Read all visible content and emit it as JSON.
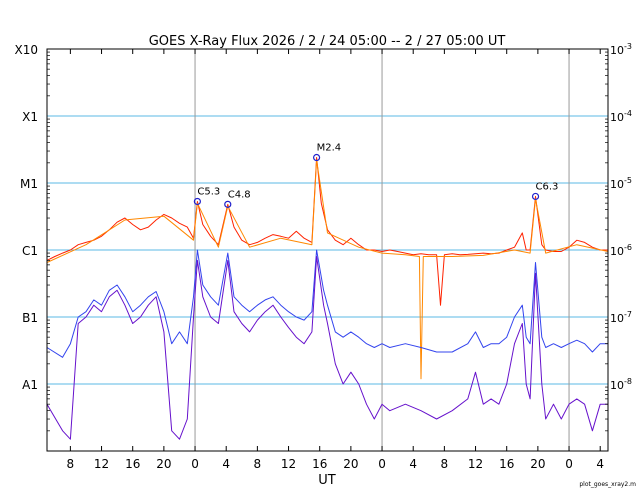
{
  "chart_data": {
    "type": "line",
    "title": "GOES X-Ray Flux   2026 /  2 / 24   05:00 --  2 / 27   05:00   UT",
    "xlabel": "UT",
    "footer_label": "plot_goes_xray2.m",
    "y_scale": "log",
    "ylim": [
      1e-09,
      0.001
    ],
    "xlim_hours": [
      0,
      72
    ],
    "grid": true,
    "left_ticks": [
      {
        "label": "A1",
        "value": 1e-08
      },
      {
        "label": "B1",
        "value": 1e-07
      },
      {
        "label": "C1",
        "value": 1e-06
      },
      {
        "label": "M1",
        "value": 1e-05
      },
      {
        "label": "X1",
        "value": 0.0001
      },
      {
        "label": "X10",
        "value": 0.001
      }
    ],
    "right_ticks": [
      {
        "base": "10",
        "exp": "-8",
        "value": 1e-08
      },
      {
        "base": "10",
        "exp": "-7",
        "value": 1e-07
      },
      {
        "base": "10",
        "exp": "-6",
        "value": 1e-06
      },
      {
        "base": "10",
        "exp": "-5",
        "value": 1e-05
      },
      {
        "base": "10",
        "exp": "-4",
        "value": 0.0001
      },
      {
        "base": "10",
        "exp": "-3",
        "value": 0.001
      }
    ],
    "x_ticks": [
      {
        "label": "8",
        "hour": 3
      },
      {
        "label": "12",
        "hour": 7
      },
      {
        "label": "16",
        "hour": 11
      },
      {
        "label": "20",
        "hour": 15
      },
      {
        "label": "0",
        "hour": 19
      },
      {
        "label": "4",
        "hour": 23
      },
      {
        "label": "8",
        "hour": 27
      },
      {
        "label": "12",
        "hour": 31
      },
      {
        "label": "16",
        "hour": 35
      },
      {
        "label": "20",
        "hour": 39
      },
      {
        "label": "0",
        "hour": 43
      },
      {
        "label": "4",
        "hour": 47
      },
      {
        "label": "8",
        "hour": 51
      },
      {
        "label": "12",
        "hour": 55
      },
      {
        "label": "16",
        "hour": 59
      },
      {
        "label": "20",
        "hour": 63
      },
      {
        "label": "0",
        "hour": 67
      },
      {
        "label": "4",
        "hour": 71
      }
    ],
    "day_boundaries_hours": [
      19,
      43,
      67
    ],
    "flares": [
      {
        "label": "C5.3",
        "hour": 19.3,
        "flux": 5.3e-06
      },
      {
        "label": "C4.8",
        "hour": 23.2,
        "flux": 4.8e-06
      },
      {
        "label": "M2.4",
        "hour": 34.6,
        "flux": 2.4e-05
      },
      {
        "label": "C6.3",
        "hour": 62.7,
        "flux": 6.3e-06
      }
    ],
    "series": [
      {
        "name": "",
        "color": "#ff2200",
        "points": [
          [
            0,
            7e-07
          ],
          [
            1,
            8e-07
          ],
          [
            2,
            9e-07
          ],
          [
            3,
            1e-06
          ],
          [
            4,
            1.2e-06
          ],
          [
            5,
            1.3e-06
          ],
          [
            6,
            1.4e-06
          ],
          [
            7,
            1.6e-06
          ],
          [
            8,
            2e-06
          ],
          [
            9,
            2.6e-06
          ],
          [
            10,
            3e-06
          ],
          [
            11,
            2.4e-06
          ],
          [
            12,
            2e-06
          ],
          [
            13,
            2.2e-06
          ],
          [
            14,
            2.8e-06
          ],
          [
            15,
            3.4e-06
          ],
          [
            16,
            3e-06
          ],
          [
            17,
            2.5e-06
          ],
          [
            18,
            2.2e-06
          ],
          [
            18.8,
            1.5e-06
          ],
          [
            19.3,
            5.3e-06
          ],
          [
            20,
            2.4e-06
          ],
          [
            21,
            1.6e-06
          ],
          [
            22,
            1.2e-06
          ],
          [
            23.2,
            4.8e-06
          ],
          [
            24,
            2.2e-06
          ],
          [
            25,
            1.4e-06
          ],
          [
            26,
            1.2e-06
          ],
          [
            27,
            1.3e-06
          ],
          [
            28,
            1.5e-06
          ],
          [
            29,
            1.7e-06
          ],
          [
            30,
            1.6e-06
          ],
          [
            31,
            1.5e-06
          ],
          [
            32,
            1.9e-06
          ],
          [
            33,
            1.5e-06
          ],
          [
            34,
            1.3e-06
          ],
          [
            34.6,
            2.4e-05
          ],
          [
            35.2,
            5e-06
          ],
          [
            36,
            2e-06
          ],
          [
            37,
            1.4e-06
          ],
          [
            38,
            1.2e-06
          ],
          [
            39,
            1.5e-06
          ],
          [
            40,
            1.2e-06
          ],
          [
            41,
            1e-06
          ],
          [
            42,
            1e-06
          ],
          [
            43,
            9.5e-07
          ],
          [
            44,
            1e-06
          ],
          [
            45,
            9.5e-07
          ],
          [
            46,
            9e-07
          ],
          [
            47,
            8.5e-07
          ],
          [
            48,
            8.8e-07
          ],
          [
            49,
            8.5e-07
          ],
          [
            50,
            8.5e-07
          ],
          [
            50.5,
            1.5e-07
          ],
          [
            51,
            8.5e-07
          ],
          [
            52,
            8.8e-07
          ],
          [
            53,
            8.5e-07
          ],
          [
            54,
            8.6e-07
          ],
          [
            55,
            8.8e-07
          ],
          [
            56,
            9e-07
          ],
          [
            57,
            8.8e-07
          ],
          [
            58,
            9e-07
          ],
          [
            59,
            1e-06
          ],
          [
            60,
            1.1e-06
          ],
          [
            61,
            1.8e-06
          ],
          [
            61.5,
            1e-06
          ],
          [
            62,
            1e-06
          ],
          [
            62.7,
            6.3e-06
          ],
          [
            63.5,
            1.2e-06
          ],
          [
            64,
            1e-06
          ],
          [
            65,
            9.5e-07
          ],
          [
            66,
            9.5e-07
          ],
          [
            67,
            1.1e-06
          ],
          [
            68,
            1.4e-06
          ],
          [
            69,
            1.3e-06
          ],
          [
            70,
            1.1e-06
          ],
          [
            71,
            1e-06
          ],
          [
            72,
            1e-06
          ]
        ]
      },
      {
        "name": "",
        "color": "#ff8800",
        "points": [
          [
            0,
            6.5e-07
          ],
          [
            5,
            1.2e-06
          ],
          [
            10,
            2.8e-06
          ],
          [
            15,
            3.2e-06
          ],
          [
            18.8,
            1.4e-06
          ],
          [
            19.3,
            5e-06
          ],
          [
            22,
            1.1e-06
          ],
          [
            23.2,
            4.5e-06
          ],
          [
            26,
            1.1e-06
          ],
          [
            30,
            1.5e-06
          ],
          [
            34,
            1.2e-06
          ],
          [
            34.6,
            2.2e-05
          ],
          [
            36,
            1.8e-06
          ],
          [
            40,
            1.1e-06
          ],
          [
            43,
            9e-07
          ],
          [
            46,
            8.5e-07
          ],
          [
            47.8,
            8e-07
          ],
          [
            48,
            1.2e-08
          ],
          [
            48.3,
            8e-07
          ],
          [
            52,
            8e-07
          ],
          [
            56,
            8.3e-07
          ],
          [
            60,
            1e-06
          ],
          [
            62,
            9e-07
          ],
          [
            62.7,
            5.8e-06
          ],
          [
            64,
            9e-07
          ],
          [
            68,
            1.2e-06
          ],
          [
            72,
            9.5e-07
          ]
        ]
      },
      {
        "name": "",
        "color": "#3344ee",
        "points": [
          [
            0,
            3.5e-08
          ],
          [
            2,
            2.5e-08
          ],
          [
            3,
            4e-08
          ],
          [
            4,
            1e-07
          ],
          [
            5,
            1.2e-07
          ],
          [
            6,
            1.8e-07
          ],
          [
            7,
            1.5e-07
          ],
          [
            8,
            2.5e-07
          ],
          [
            9,
            3e-07
          ],
          [
            10,
            2e-07
          ],
          [
            11,
            1.2e-07
          ],
          [
            12,
            1.5e-07
          ],
          [
            13,
            2e-07
          ],
          [
            14,
            2.4e-07
          ],
          [
            15,
            1.2e-07
          ],
          [
            16,
            4e-08
          ],
          [
            17,
            6e-08
          ],
          [
            18,
            4e-08
          ],
          [
            18.8,
            2e-07
          ],
          [
            19.3,
            1e-06
          ],
          [
            20,
            3e-07
          ],
          [
            21,
            2e-07
          ],
          [
            22,
            1.5e-07
          ],
          [
            23.2,
            9e-07
          ],
          [
            24,
            2e-07
          ],
          [
            25,
            1.5e-07
          ],
          [
            26,
            1.2e-07
          ],
          [
            27,
            1.5e-07
          ],
          [
            28,
            1.8e-07
          ],
          [
            29,
            2e-07
          ],
          [
            30,
            1.5e-07
          ],
          [
            31,
            1.2e-07
          ],
          [
            32,
            1e-07
          ],
          [
            33,
            9e-08
          ],
          [
            34,
            1.2e-07
          ],
          [
            34.6,
            1e-06
          ],
          [
            35.5,
            2.5e-07
          ],
          [
            36,
            1.5e-07
          ],
          [
            37,
            6e-08
          ],
          [
            38,
            5e-08
          ],
          [
            39,
            6e-08
          ],
          [
            40,
            5e-08
          ],
          [
            41,
            4e-08
          ],
          [
            42,
            3.5e-08
          ],
          [
            43,
            4e-08
          ],
          [
            44,
            3.5e-08
          ],
          [
            46,
            4e-08
          ],
          [
            48,
            3.5e-08
          ],
          [
            50,
            3e-08
          ],
          [
            52,
            3e-08
          ],
          [
            54,
            4e-08
          ],
          [
            55,
            6e-08
          ],
          [
            56,
            3.5e-08
          ],
          [
            57,
            4e-08
          ],
          [
            58,
            4e-08
          ],
          [
            59,
            5e-08
          ],
          [
            60,
            1e-07
          ],
          [
            61,
            1.5e-07
          ],
          [
            61.5,
            5e-08
          ],
          [
            62,
            4e-08
          ],
          [
            62.7,
            6.5e-07
          ],
          [
            63.5,
            5e-08
          ],
          [
            64,
            3.5e-08
          ],
          [
            65,
            4e-08
          ],
          [
            66,
            3.5e-08
          ],
          [
            67,
            4e-08
          ],
          [
            68,
            4.5e-08
          ],
          [
            69,
            4e-08
          ],
          [
            70,
            3e-08
          ],
          [
            71,
            4e-08
          ],
          [
            72,
            4e-08
          ]
        ]
      },
      {
        "name": "",
        "color": "#6611cc",
        "points": [
          [
            0,
            5e-09
          ],
          [
            2,
            2e-09
          ],
          [
            3,
            1.5e-09
          ],
          [
            4,
            8e-08
          ],
          [
            5,
            1e-07
          ],
          [
            6,
            1.5e-07
          ],
          [
            7,
            1.2e-07
          ],
          [
            8,
            2e-07
          ],
          [
            9,
            2.5e-07
          ],
          [
            10,
            1.5e-07
          ],
          [
            11,
            8e-08
          ],
          [
            12,
            1e-07
          ],
          [
            13,
            1.5e-07
          ],
          [
            14,
            2e-07
          ],
          [
            15,
            6e-08
          ],
          [
            16,
            2e-09
          ],
          [
            17,
            1.5e-09
          ],
          [
            18,
            3e-09
          ],
          [
            18.8,
            1e-07
          ],
          [
            19.3,
            7e-07
          ],
          [
            20,
            2e-07
          ],
          [
            21,
            1e-07
          ],
          [
            22,
            8e-08
          ],
          [
            23.2,
            7e-07
          ],
          [
            24,
            1.2e-07
          ],
          [
            25,
            8e-08
          ],
          [
            26,
            6e-08
          ],
          [
            27,
            9e-08
          ],
          [
            28,
            1.2e-07
          ],
          [
            29,
            1.5e-07
          ],
          [
            30,
            1e-07
          ],
          [
            31,
            7e-08
          ],
          [
            32,
            5e-08
          ],
          [
            33,
            4e-08
          ],
          [
            34,
            6e-08
          ],
          [
            34.6,
            8e-07
          ],
          [
            35.5,
            1.5e-07
          ],
          [
            36,
            8e-08
          ],
          [
            37,
            2e-08
          ],
          [
            38,
            1e-08
          ],
          [
            39,
            1.5e-08
          ],
          [
            40,
            1e-08
          ],
          [
            41,
            5e-09
          ],
          [
            42,
            3e-09
          ],
          [
            43,
            5e-09
          ],
          [
            44,
            4e-09
          ],
          [
            46,
            5e-09
          ],
          [
            48,
            4e-09
          ],
          [
            50,
            3e-09
          ],
          [
            52,
            4e-09
          ],
          [
            54,
            6e-09
          ],
          [
            55,
            1.5e-08
          ],
          [
            56,
            5e-09
          ],
          [
            57,
            6e-09
          ],
          [
            58,
            5e-09
          ],
          [
            59,
            1e-08
          ],
          [
            60,
            4e-08
          ],
          [
            61,
            8e-08
          ],
          [
            61.5,
            1e-08
          ],
          [
            62,
            6e-09
          ],
          [
            62.7,
            4.5e-07
          ],
          [
            63.5,
            1e-08
          ],
          [
            64,
            3e-09
          ],
          [
            65,
            5e-09
          ],
          [
            66,
            3e-09
          ],
          [
            67,
            5e-09
          ],
          [
            68,
            6e-09
          ],
          [
            69,
            5e-09
          ],
          [
            70,
            2e-09
          ],
          [
            71,
            5e-09
          ],
          [
            72,
            5e-09
          ]
        ]
      }
    ]
  }
}
